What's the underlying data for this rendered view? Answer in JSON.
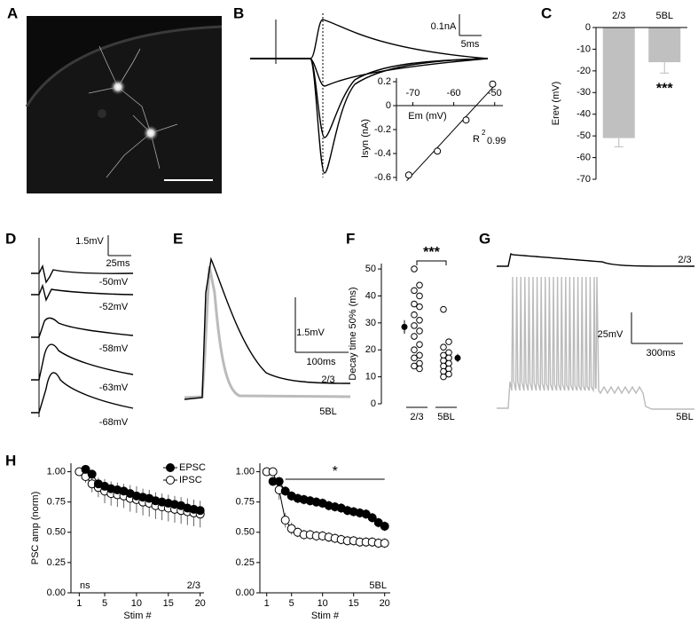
{
  "panel_labels": [
    "A",
    "B",
    "C",
    "D",
    "E",
    "F",
    "G",
    "H"
  ],
  "scale_bars": {
    "B": [
      "0.1nA",
      "5ms"
    ],
    "D": [
      "1.5mV",
      "25ms"
    ],
    "E": [
      "1.5mV",
      "100ms"
    ],
    "G": [
      "25mV",
      "300ms"
    ]
  },
  "trace_labels": {
    "D": [
      "-50mV",
      "-52mV",
      "-58mV",
      "-63mV",
      "-68mV"
    ],
    "E": [
      "2/3",
      "5BL"
    ],
    "G": [
      "2/3",
      "5BL"
    ]
  },
  "chart_data": [
    {
      "type": "scatter",
      "x": [
        -71,
        -64,
        -57,
        -50.5
      ],
      "values": [
        -0.58,
        -0.38,
        -0.12,
        0.18
      ],
      "xlim": [
        -74,
        -48
      ],
      "ylim": [
        -0.63,
        0.23
      ],
      "xticks": [
        -70,
        -60,
        -50
      ],
      "yticks": [
        0.2,
        0,
        -0.2,
        -0.4,
        -0.6
      ],
      "xlabel": "Em (mV)",
      "ylabel": "Isyn (nA)",
      "fit_label": "R",
      "fit_label_sup": "2",
      "fit_r2": 0.99,
      "color": "#000000"
    },
    {
      "type": "bar",
      "categories": [
        "2/3",
        "5BL"
      ],
      "values": [
        -51,
        -16
      ],
      "errors": [
        4,
        5
      ],
      "color": "#c0c0c0",
      "ylim": [
        -70,
        0
      ],
      "yticks": [
        0,
        -10,
        -20,
        -30,
        -40,
        -50,
        -60,
        -70
      ],
      "ylabel": "Erev (mV)",
      "annotation": "***"
    },
    {
      "type": "dot",
      "categories": [
        "2/3",
        "5BL"
      ],
      "points": [
        [
          50,
          44,
          42,
          40,
          37,
          36,
          33,
          31,
          29,
          27,
          25,
          22,
          20,
          18,
          17,
          15,
          14,
          13
        ],
        [
          35,
          23,
          21,
          19,
          18,
          17,
          16,
          15,
          14,
          13,
          12,
          11,
          10
        ]
      ],
      "means": [
        28.5,
        17
      ],
      "errors": [
        2.5,
        1.5
      ],
      "ylim": [
        0,
        52
      ],
      "yticks": [
        0,
        10,
        20,
        30,
        40,
        50
      ],
      "ylabel": "Decay time 50% (ms)",
      "annotation": "***"
    },
    {
      "type": "line",
      "xlim": [
        -0.3,
        20.6
      ],
      "ylim": [
        0,
        1.07
      ],
      "xticks": [
        1,
        5,
        10,
        15,
        20
      ],
      "yticks": [
        {
          "value": 0,
          "label": "0.00"
        },
        0.25,
        {
          "value": 0.5,
          "label": "0.50"
        },
        0.75,
        {
          "value": 1,
          "label": "1.00"
        }
      ],
      "xlabel": "Stim #",
      "ylabel": "PSC amp (norm)",
      "legend": "top-right",
      "stat_label": "ns",
      "corner_label": "2/3",
      "series": [
        {
          "name": "EPSC",
          "color": "#000000",
          "x": [
            2,
            3,
            4,
            5,
            6,
            7,
            8,
            9,
            10,
            11,
            12,
            13,
            14,
            15,
            16,
            17,
            18,
            19,
            20
          ],
          "values": [
            1.02,
            0.98,
            0.9,
            0.88,
            0.86,
            0.85,
            0.84,
            0.82,
            0.8,
            0.79,
            0.78,
            0.76,
            0.75,
            0.74,
            0.73,
            0.72,
            0.7,
            0.69,
            0.68
          ],
          "errors": [
            0.03,
            0.03,
            0.03,
            0.03,
            0.03,
            0.03,
            0.03,
            0.03,
            0.03,
            0.03,
            0.03,
            0.03,
            0.03,
            0.03,
            0.03,
            0.03,
            0.03,
            0.03,
            0.03
          ]
        },
        {
          "name": "IPSC",
          "color": "#ffffff",
          "x": [
            1,
            2,
            3,
            4,
            5,
            6,
            7,
            8,
            9,
            10,
            11,
            12,
            13,
            14,
            15,
            16,
            17,
            18,
            19,
            20
          ],
          "values": [
            1.0,
            0.96,
            0.9,
            0.87,
            0.84,
            0.82,
            0.81,
            0.8,
            0.78,
            0.77,
            0.75,
            0.74,
            0.72,
            0.71,
            0.7,
            0.69,
            0.68,
            0.67,
            0.66,
            0.65
          ],
          "errors": [
            0.02,
            0.05,
            0.07,
            0.08,
            0.1,
            0.1,
            0.1,
            0.1,
            0.11,
            0.11,
            0.11,
            0.11,
            0.11,
            0.11,
            0.11,
            0.11,
            0.11,
            0.11,
            0.11,
            0.11
          ]
        }
      ]
    },
    {
      "type": "line",
      "xlim": [
        -0.1,
        20.9
      ],
      "ylim": [
        0,
        1.07
      ],
      "xticks": [
        1,
        5,
        10,
        15,
        20
      ],
      "yticks": [
        {
          "value": 0,
          "label": "0.00"
        },
        0.25,
        {
          "value": 0.5,
          "label": "0.50"
        },
        0.75,
        {
          "value": 1,
          "label": "1.00"
        }
      ],
      "xlabel": "Stim #",
      "stat_label": "*",
      "corner_label": "5BL",
      "series": [
        {
          "name": "EPSC",
          "color": "#000000",
          "x": [
            2,
            3,
            4,
            5,
            6,
            7,
            8,
            9,
            10,
            11,
            12,
            13,
            14,
            15,
            16,
            17,
            18,
            19,
            20
          ],
          "values": [
            0.92,
            0.92,
            0.84,
            0.8,
            0.78,
            0.77,
            0.76,
            0.75,
            0.74,
            0.72,
            0.71,
            0.7,
            0.68,
            0.67,
            0.66,
            0.65,
            0.62,
            0.58,
            0.55
          ],
          "errors": [
            0.03,
            0.03,
            0.04,
            0.04,
            0.04,
            0.04,
            0.04,
            0.04,
            0.04,
            0.04,
            0.04,
            0.04,
            0.04,
            0.04,
            0.04,
            0.04,
            0.04,
            0.04,
            0.04
          ]
        },
        {
          "name": "IPSC",
          "color": "#ffffff",
          "x": [
            1,
            2,
            3,
            4,
            5,
            6,
            7,
            8,
            9,
            10,
            11,
            12,
            13,
            14,
            15,
            16,
            17,
            18,
            19,
            20
          ],
          "values": [
            1.0,
            1.0,
            0.85,
            0.6,
            0.53,
            0.5,
            0.48,
            0.48,
            0.47,
            0.47,
            0.46,
            0.45,
            0.44,
            0.43,
            0.43,
            0.42,
            0.42,
            0.42,
            0.41,
            0.41
          ],
          "errors": [
            0.01,
            0.02,
            0.08,
            0.06,
            0.05,
            0.04,
            0.04,
            0.04,
            0.04,
            0.04,
            0.04,
            0.04,
            0.04,
            0.04,
            0.04,
            0.04,
            0.04,
            0.04,
            0.04,
            0.04
          ]
        }
      ]
    }
  ]
}
